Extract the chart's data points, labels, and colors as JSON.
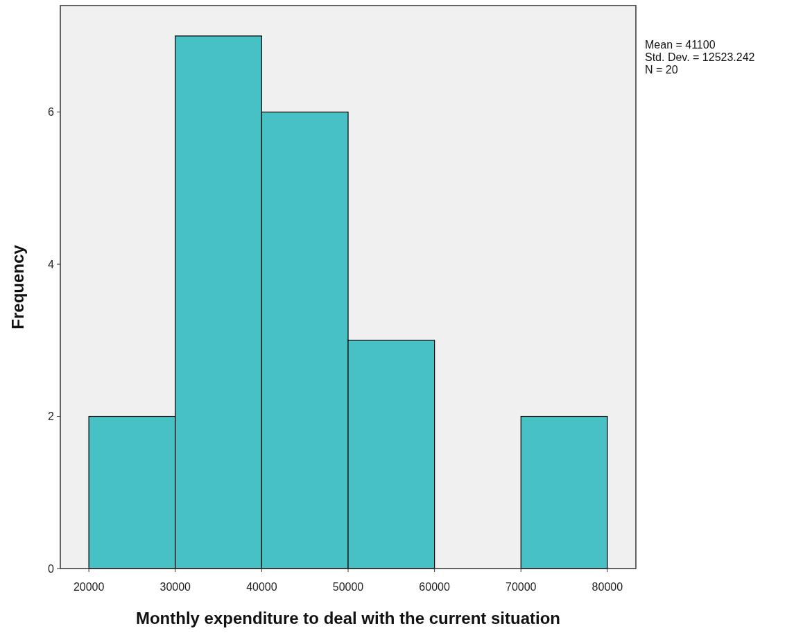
{
  "chart_data": {
    "type": "histogram",
    "xlabel": "Monthly expenditure to deal with the current situation",
    "ylabel": "Frequency",
    "bins": [
      20000,
      30000,
      40000,
      50000,
      60000,
      70000,
      80000
    ],
    "values": [
      2,
      7,
      6,
      3,
      0,
      2
    ],
    "color": "#48c1c4",
    "xlim": [
      16700,
      83300
    ],
    "xticks": [
      20000,
      30000,
      40000,
      50000,
      60000,
      70000,
      80000
    ],
    "ylim": [
      0,
      7.4
    ],
    "yticks": [
      0,
      2,
      4,
      6
    ],
    "grid": false,
    "annotations": [
      "Mean = 41100",
      "Std. Dev. = 12523.242",
      "N = 20"
    ]
  }
}
